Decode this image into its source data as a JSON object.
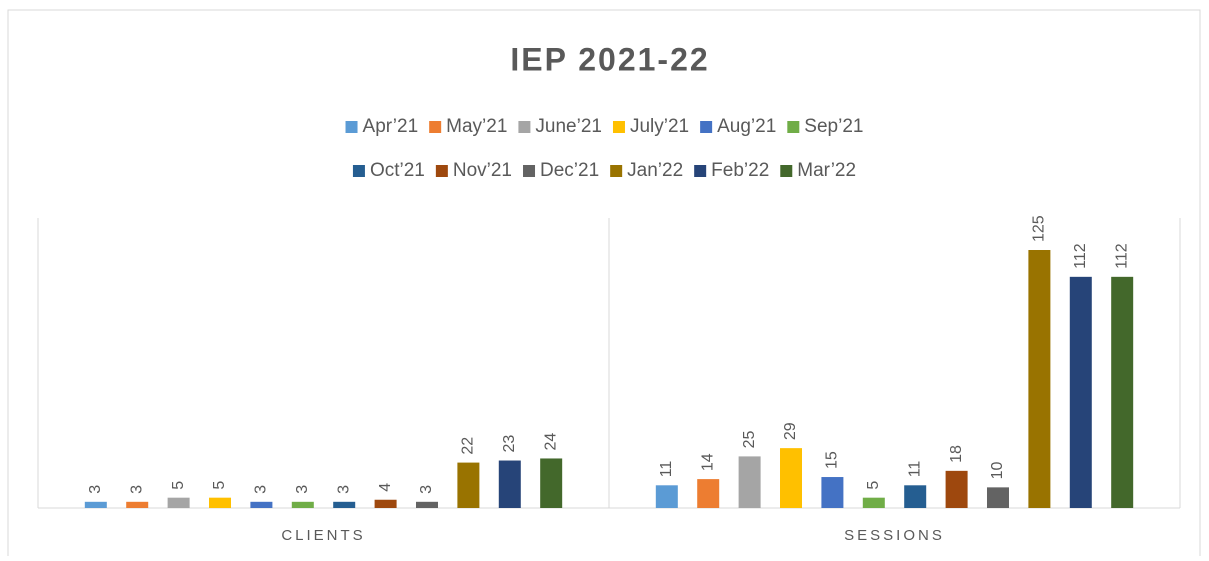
{
  "chart_data": {
    "type": "bar",
    "title": "IEP 2021-22",
    "categories": [
      "CLIENTS",
      "SESSIONS"
    ],
    "series": [
      {
        "name": "Apr’21",
        "color": "#5b9bd5",
        "values": [
          3,
          11
        ]
      },
      {
        "name": "May’21",
        "color": "#ed7d31",
        "values": [
          3,
          14
        ]
      },
      {
        "name": "June’21",
        "color": "#a5a5a5",
        "values": [
          5,
          25
        ]
      },
      {
        "name": "July’21",
        "color": "#ffc000",
        "values": [
          5,
          29
        ]
      },
      {
        "name": "Aug’21",
        "color": "#4472c4",
        "values": [
          3,
          15
        ]
      },
      {
        "name": "Sep’21",
        "color": "#70ad47",
        "values": [
          3,
          5
        ]
      },
      {
        "name": "Oct’21",
        "color": "#255e91",
        "values": [
          3,
          11
        ]
      },
      {
        "name": "Nov’21",
        "color": "#9e480e",
        "values": [
          4,
          18
        ]
      },
      {
        "name": "Dec’21",
        "color": "#636363",
        "values": [
          3,
          10
        ]
      },
      {
        "name": "Jan’22",
        "color": "#997300",
        "values": [
          22,
          125
        ]
      },
      {
        "name": "Feb’22",
        "color": "#264478",
        "values": [
          23,
          112
        ]
      },
      {
        "name": "Mar’22",
        "color": "#43682b",
        "values": [
          24,
          112
        ]
      }
    ]
  }
}
